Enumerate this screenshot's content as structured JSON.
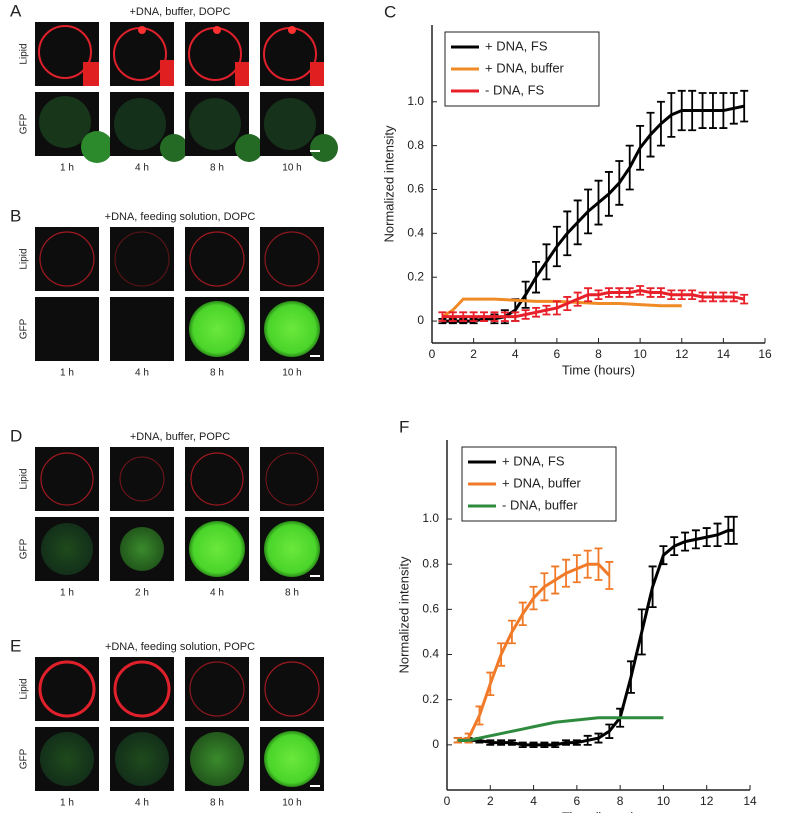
{
  "panels": [
    {
      "letter": "A",
      "title": "+DNA, buffer, DOPC",
      "rows": [
        "Lipid",
        "GFP"
      ],
      "times": [
        "1 h",
        "4 h",
        "8 h",
        "10 h"
      ]
    },
    {
      "letter": "B",
      "title": "+DNA, feeding solution, DOPC",
      "rows": [
        "Lipid",
        "GFP"
      ],
      "times": [
        "1 h",
        "4 h",
        "8 h",
        "10 h"
      ]
    },
    {
      "letter": "D",
      "title": "+DNA, buffer, POPC",
      "rows": [
        "Lipid",
        "GFP"
      ],
      "times": [
        "1 h",
        "2 h",
        "4 h",
        "8 h"
      ]
    },
    {
      "letter": "E",
      "title": "+DNA, feeding solution, POPC",
      "rows": [
        "Lipid",
        "GFP"
      ],
      "times": [
        "1 h",
        "4 h",
        "8 h",
        "10 h"
      ]
    }
  ],
  "chart_data": [
    {
      "type": "line",
      "letter": "C",
      "xlabel": "Time (hours)",
      "ylabel": "Normalized intensity",
      "legend": "upper left",
      "xlim": [
        0,
        16
      ],
      "xticks": [
        0,
        2,
        4,
        6,
        8,
        10,
        12,
        14,
        16
      ],
      "ylim": [
        -0.1,
        1.35
      ],
      "yticks": [
        0,
        0.2,
        0.4,
        0.6,
        0.8,
        {
          "value": 1,
          "label": "1.0"
        }
      ],
      "series": [
        {
          "name": "+ DNA, FS",
          "color": "#000000",
          "x": [
            0.5,
            1,
            1.5,
            2,
            2.5,
            3,
            3.5,
            4,
            4.5,
            5,
            5.5,
            6,
            6.5,
            7,
            7.5,
            8,
            8.5,
            9,
            9.5,
            10,
            10.5,
            11,
            11.5,
            12,
            12.5,
            13,
            13.5,
            14,
            14.5,
            15
          ],
          "values": [
            0,
            0,
            0,
            0,
            0.01,
            0.01,
            0.02,
            0.05,
            0.12,
            0.2,
            0.27,
            0.34,
            0.4,
            0.45,
            0.5,
            0.54,
            0.58,
            0.63,
            0.7,
            0.79,
            0.85,
            0.9,
            0.94,
            0.96,
            0.96,
            0.96,
            0.96,
            0.96,
            0.97,
            0.98
          ],
          "errors": [
            0.01,
            0.01,
            0.01,
            0.01,
            0.01,
            0.02,
            0.03,
            0.05,
            0.06,
            0.07,
            0.08,
            0.09,
            0.1,
            0.1,
            0.1,
            0.1,
            0.1,
            0.1,
            0.1,
            0.1,
            0.1,
            0.1,
            0.1,
            0.09,
            0.09,
            0.08,
            0.08,
            0.08,
            0.07,
            0.07
          ]
        },
        {
          "name": "+ DNA, buffer",
          "color": "#f08a24",
          "x": [
            0.5,
            1,
            1.5,
            2,
            3,
            4,
            5,
            6,
            7,
            8,
            9,
            10,
            11,
            12
          ],
          "values": [
            0.02,
            0.05,
            0.1,
            0.1,
            0.1,
            0.095,
            0.09,
            0.09,
            0.085,
            0.08,
            0.08,
            0.075,
            0.07,
            0.07
          ]
        },
        {
          "name": "- DNA, FS",
          "color": "#e8202a",
          "x": [
            0.5,
            1,
            1.5,
            2,
            2.5,
            3,
            3.5,
            4,
            4.5,
            5,
            5.5,
            6,
            6.5,
            7,
            7.5,
            8,
            8.5,
            9,
            9.5,
            10,
            10.5,
            11,
            11.5,
            12,
            12.5,
            13,
            13.5,
            14,
            14.5,
            15
          ],
          "values": [
            0.02,
            0.02,
            0.02,
            0.02,
            0.02,
            0.02,
            0.02,
            0.02,
            0.03,
            0.04,
            0.05,
            0.06,
            0.08,
            0.1,
            0.12,
            0.12,
            0.13,
            0.13,
            0.13,
            0.14,
            0.13,
            0.13,
            0.12,
            0.12,
            0.12,
            0.11,
            0.11,
            0.11,
            0.11,
            0.1
          ],
          "errors": [
            0.02,
            0.02,
            0.02,
            0.02,
            0.02,
            0.02,
            0.02,
            0.02,
            0.02,
            0.02,
            0.02,
            0.03,
            0.03,
            0.03,
            0.03,
            0.02,
            0.02,
            0.02,
            0.02,
            0.02,
            0.02,
            0.02,
            0.02,
            0.02,
            0.02,
            0.02,
            0.02,
            0.02,
            0.02,
            0.02
          ]
        }
      ]
    },
    {
      "type": "line",
      "letter": "F",
      "xlabel": "Time (hours)",
      "ylabel": "Normalized intensity",
      "legend": "upper left",
      "xlim": [
        0,
        14
      ],
      "xticks": [
        0,
        2,
        4,
        6,
        8,
        10,
        12,
        14
      ],
      "ylim": [
        -0.2,
        1.35
      ],
      "yticks": [
        0,
        0.2,
        0.4,
        0.6,
        0.8,
        {
          "value": 1,
          "label": "1.0"
        }
      ],
      "series": [
        {
          "name": "+ DNA, FS",
          "color": "#000000",
          "x": [
            0.5,
            1,
            1.5,
            2,
            2.5,
            3,
            3.5,
            4,
            4.5,
            5,
            5.5,
            6,
            6.5,
            7,
            7.5,
            8,
            8.5,
            9,
            9.5,
            10,
            10.5,
            11,
            11.5,
            12,
            12.5,
            13,
            13.25
          ],
          "values": [
            0.02,
            0.02,
            0.02,
            0.01,
            0.01,
            0.01,
            0,
            0,
            0,
            0,
            0.01,
            0.01,
            0.02,
            0.03,
            0.06,
            0.12,
            0.3,
            0.5,
            0.7,
            0.84,
            0.88,
            0.9,
            0.91,
            0.92,
            0.93,
            0.95,
            0.95
          ],
          "errors": [
            0.01,
            0.01,
            0.01,
            0.01,
            0.01,
            0.01,
            0.01,
            0.01,
            0.01,
            0.01,
            0.01,
            0.01,
            0.02,
            0.02,
            0.03,
            0.04,
            0.07,
            0.1,
            0.09,
            0.04,
            0.04,
            0.04,
            0.04,
            0.04,
            0.05,
            0.06,
            0.06
          ]
        },
        {
          "name": "+ DNA, buffer",
          "color": "#f07a28",
          "x": [
            0.5,
            1,
            1.5,
            2,
            2.5,
            3,
            3.5,
            4,
            4.5,
            5,
            5.5,
            6,
            6.5,
            7,
            7.5
          ],
          "values": [
            0.02,
            0.03,
            0.13,
            0.27,
            0.4,
            0.5,
            0.58,
            0.65,
            0.7,
            0.73,
            0.76,
            0.78,
            0.8,
            0.8,
            0.75
          ],
          "errors": [
            0.01,
            0.02,
            0.04,
            0.05,
            0.05,
            0.05,
            0.05,
            0.05,
            0.06,
            0.06,
            0.06,
            0.06,
            0.06,
            0.07,
            0.06
          ]
        },
        {
          "name": "- DNA, buffer",
          "color": "#2e8b3e",
          "x": [
            0.5,
            1,
            1.5,
            2,
            2.5,
            3,
            3.5,
            4,
            4.5,
            5,
            5.5,
            6,
            6.5,
            7,
            7.5,
            8,
            8.5,
            9,
            9.5,
            10
          ],
          "values": [
            0.02,
            0.02,
            0.03,
            0.04,
            0.05,
            0.06,
            0.07,
            0.08,
            0.09,
            0.1,
            0.105,
            0.11,
            0.115,
            0.12,
            0.12,
            0.12,
            0.12,
            0.12,
            0.12,
            0.12
          ]
        }
      ]
    }
  ]
}
